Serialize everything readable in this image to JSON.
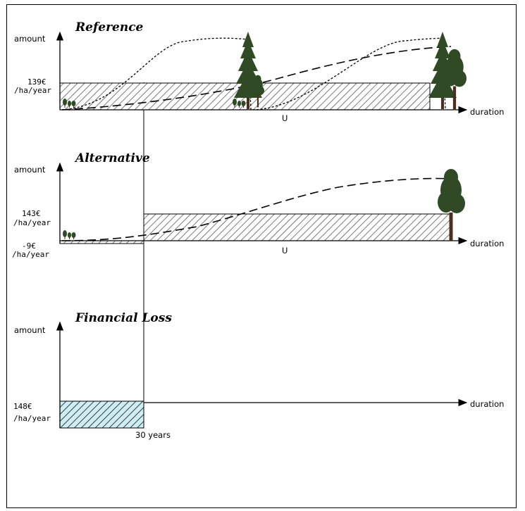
{
  "panels": [
    {
      "id": "reference",
      "title": "Reference",
      "y_label": "amount",
      "x_label": "duration",
      "rate_value": "139€",
      "rate_unit": "/ha/year",
      "rotation_marker": "U"
    },
    {
      "id": "alternative",
      "title": "Alternative",
      "y_label": "amount",
      "x_label": "duration",
      "rate_value": "143€",
      "rate_unit": "/ha/year",
      "neg_rate_value": "-9€",
      "neg_rate_unit": "/ha/year",
      "rotation_marker": "U"
    },
    {
      "id": "financial-loss",
      "title": "Financial Loss",
      "y_label": "amount",
      "x_label": "duration",
      "rate_value": "148€",
      "rate_unit": "/ha/year",
      "period_label": "30 years"
    }
  ],
  "colors": {
    "hatch": "#5a5a5a",
    "loss_fill": "#cdeef3",
    "tree_green": "#2f4a25",
    "trunk": "#4a2f1f"
  },
  "icons": [
    "conifer-tree-icon",
    "broadleaf-tree-icon",
    "seedling-icon"
  ]
}
